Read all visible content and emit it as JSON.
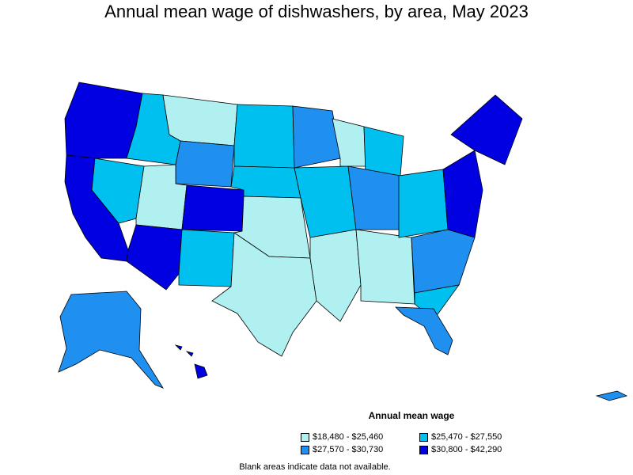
{
  "title": "Annual mean wage of dishwashers, by area, May 2023",
  "legend": {
    "title": "Annual mean wage",
    "items": [
      {
        "label": "$18,480 - $25,460",
        "color": "#b0f0f0"
      },
      {
        "label": "$25,470 - $27,550",
        "color": "#00c0f0"
      },
      {
        "label": "$27,570 - $30,730",
        "color": "#2090f0"
      },
      {
        "label": "$30,800 - $42,290",
        "color": "#0000e0"
      }
    ]
  },
  "footnote": "Blank areas indicate data not available.",
  "colors": {
    "tier1": "#b0f0f0",
    "tier2": "#00c0f0",
    "tier3": "#2090f0",
    "tier4": "#0000e0"
  }
}
